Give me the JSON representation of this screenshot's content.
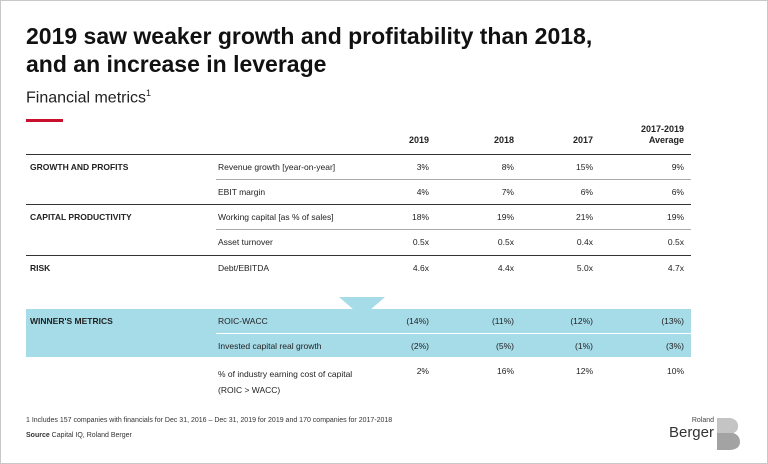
{
  "title": {
    "line1": "2019 saw weaker growth and profitability than 2018,",
    "line2": "and an increase in leverage"
  },
  "subtitle": "Financial metrics",
  "subtitle_sup": "1",
  "columns": [
    "2019",
    "2018",
    "2017",
    "2017-2019",
    "Average"
  ],
  "rows": [
    {
      "category": "GROWTH AND PROFITS",
      "metric": "Revenue growth [year-on-year]",
      "values": [
        "3%",
        "8%",
        "15%",
        "9%"
      ]
    },
    {
      "category": "",
      "metric": "EBIT margin",
      "values": [
        "4%",
        "7%",
        "6%",
        "6%"
      ]
    },
    {
      "category": "CAPITAL PRODUCTIVITY",
      "metric": "Working capital [as % of sales]",
      "values": [
        "18%",
        "19%",
        "21%",
        "19%"
      ]
    },
    {
      "category": "",
      "metric": "Asset turnover",
      "values": [
        "0.5x",
        "0.5x",
        "0.4x",
        "0.5x"
      ]
    },
    {
      "category": "RISK",
      "metric": "Debt/EBITDA",
      "values": [
        "4.6x",
        "4.4x",
        "5.0x",
        "4.7x"
      ]
    },
    {
      "category": "WINNER'S METRICS",
      "metric": "ROIC-WACC",
      "values": [
        "(14%)",
        "(11%)",
        "(12%)",
        "(13%)"
      ]
    },
    {
      "category": "",
      "metric": "Invested capital real growth",
      "values": [
        "(2%)",
        "(5%)",
        "(1%)",
        "(3%)"
      ]
    },
    {
      "category": "",
      "metric_line1": "% of industry earning cost of capital",
      "metric_line2": "(ROIC > WACC)",
      "values": [
        "2%",
        "16%",
        "12%",
        "10%"
      ]
    }
  ],
  "footnote": "1  Includes 157 companies with financials for Dec 31, 2016 – Dec 31, 2019 for 2019 and 170 companies for 2017-2018",
  "source_label": "Source",
  "source_text": " Capital IQ, Roland Berger",
  "logo": {
    "small": "Roland",
    "big": "Berger"
  },
  "colors": {
    "accent": "#c8102e",
    "band": "#a6dbe8"
  }
}
